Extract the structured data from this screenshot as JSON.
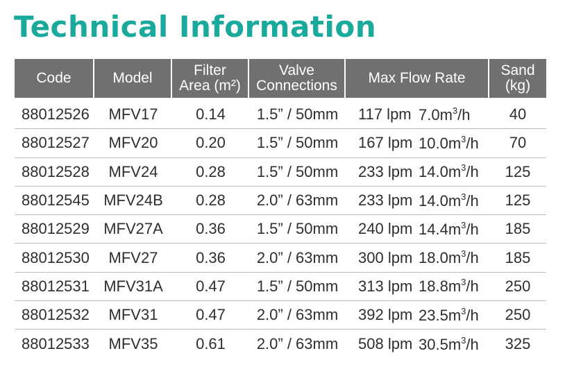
{
  "title": "Technical Information",
  "table": {
    "headers": {
      "code": "Code",
      "model": "Model",
      "area_line1": "Filter",
      "area_line2": "Area (m²)",
      "valve_line1": "Valve",
      "valve_line2": "Connections",
      "flow": "Max Flow Rate",
      "sand_line1": "Sand",
      "sand_line2": "(kg)"
    },
    "rows": [
      {
        "code": "88012526",
        "model": "MFV17",
        "area": "0.14",
        "valve": "1.5” / 50mm",
        "lpm": "117 lpm",
        "m3h_value": "7.0",
        "m3h_unit_pre": "m",
        "m3h_unit_sup": "3",
        "m3h_unit_post": "/h",
        "sand": "40"
      },
      {
        "code": "88012527",
        "model": "MFV20",
        "area": "0.20",
        "valve": "1.5” / 50mm",
        "lpm": "167 lpm",
        "m3h_value": "10.0",
        "m3h_unit_pre": "m",
        "m3h_unit_sup": "3",
        "m3h_unit_post": "/h",
        "sand": "70"
      },
      {
        "code": "88012528",
        "model": "MFV24",
        "area": "0.28",
        "valve": "1.5” / 50mm",
        "lpm": "233 lpm",
        "m3h_value": "14.0",
        "m3h_unit_pre": "m",
        "m3h_unit_sup": "3",
        "m3h_unit_post": "/h",
        "sand": "125"
      },
      {
        "code": "88012545",
        "model": "MFV24B",
        "area": "0.28",
        "valve": "2.0” / 63mm",
        "lpm": "233 lpm",
        "m3h_value": "14.0",
        "m3h_unit_pre": "m",
        "m3h_unit_sup": "3",
        "m3h_unit_post": "/h",
        "sand": "125"
      },
      {
        "code": "88012529",
        "model": "MFV27A",
        "area": "0.36",
        "valve": "1.5” / 50mm",
        "lpm": "240 lpm",
        "m3h_value": "14.4",
        "m3h_unit_pre": "m",
        "m3h_unit_sup": "3",
        "m3h_unit_post": "/h",
        "sand": "185"
      },
      {
        "code": "88012530",
        "model": "MFV27",
        "area": "0.36",
        "valve": "2.0” / 63mm",
        "lpm": "300 lpm",
        "m3h_value": "18.0",
        "m3h_unit_pre": "m",
        "m3h_unit_sup": "3",
        "m3h_unit_post": "/h",
        "sand": "185"
      },
      {
        "code": "88012531",
        "model": "MFV31A",
        "area": "0.47",
        "valve": "1.5” / 50mm",
        "lpm": "313 lpm",
        "m3h_value": "18.8",
        "m3h_unit_pre": "m",
        "m3h_unit_sup": "3",
        "m3h_unit_post": "/h",
        "sand": "250"
      },
      {
        "code": "88012532",
        "model": "MFV31",
        "area": "0.47",
        "valve": "2.0” / 63mm",
        "lpm": "392 lpm",
        "m3h_value": "23.5",
        "m3h_unit_pre": "m",
        "m3h_unit_sup": "3",
        "m3h_unit_post": "/h",
        "sand": "250"
      },
      {
        "code": "88012533",
        "model": "MFV35",
        "area": "0.61",
        "valve": "2.0” / 63mm",
        "lpm": "508 lpm",
        "m3h_value": "30.5",
        "m3h_unit_pre": "m",
        "m3h_unit_sup": "3",
        "m3h_unit_post": "/h",
        "sand": "325"
      }
    ]
  },
  "colors": {
    "title": "#1aaa9c",
    "header_bg": "#707070",
    "header_text": "#ffffff",
    "row_divider": "#bdbdbd"
  }
}
